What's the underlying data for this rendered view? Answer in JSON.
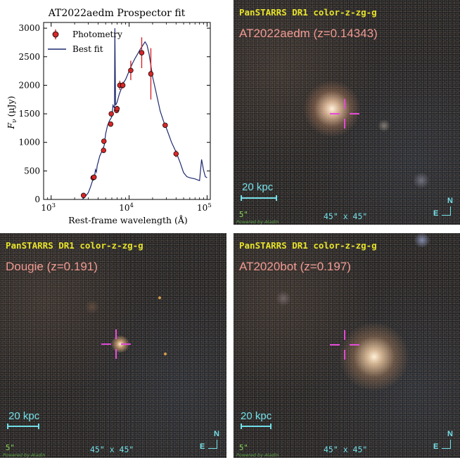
{
  "sed_panel": {
    "title": "AT2022aedm Prospector fit",
    "ylabel_main": "F",
    "ylabel_sub": "ν",
    "ylabel_unit": "(μJy)",
    "xlabel": "Rest-frame wavelength (Å)",
    "legend": {
      "photometry": "Photometry",
      "best_fit": "Best fit"
    },
    "colors": {
      "photometry_marker": "#d62728",
      "best_fit_line": "#1f2a6e"
    }
  },
  "chart_data": {
    "type": "scatter",
    "title": "AT2022aedm Prospector fit",
    "xlabel": "Rest-frame wavelength (Å)",
    "ylabel": "Fν (μJy)",
    "xscale": "log",
    "xlim": [
      800,
      110000
    ],
    "ylim": [
      0,
      3100
    ],
    "x_ticks": [
      "10^3",
      "10^4",
      "10^5"
    ],
    "y_ticks": [
      0,
      500,
      1000,
      1500,
      2000,
      2500,
      3000
    ],
    "legend_position": "top-left",
    "series": [
      {
        "name": "Photometry",
        "kind": "points_with_errorbars",
        "points": [
          {
            "x": 2600,
            "y": 70,
            "err": 20
          },
          {
            "x": 3450,
            "y": 380,
            "err": 25
          },
          {
            "x": 3550,
            "y": 390,
            "err": 25
          },
          {
            "x": 4700,
            "y": 860,
            "err": 40
          },
          {
            "x": 4750,
            "y": 1020,
            "err": 40
          },
          {
            "x": 5800,
            "y": 1320,
            "err": 40
          },
          {
            "x": 5900,
            "y": 1500,
            "err": 40
          },
          {
            "x": 6900,
            "y": 1560,
            "err": 50
          },
          {
            "x": 7000,
            "y": 1590,
            "err": 50
          },
          {
            "x": 7600,
            "y": 2000,
            "err": 80
          },
          {
            "x": 8300,
            "y": 2000,
            "err": 60
          },
          {
            "x": 10500,
            "y": 2260,
            "err": 170
          },
          {
            "x": 14500,
            "y": 2570,
            "err": 270
          },
          {
            "x": 19000,
            "y": 2200,
            "err": 450
          },
          {
            "x": 29000,
            "y": 1300,
            "err": 40
          },
          {
            "x": 40000,
            "y": 800,
            "err": 60
          }
        ]
      },
      {
        "name": "Best fit",
        "kind": "line",
        "x": [
          2500,
          2700,
          3000,
          3200,
          3400,
          3600,
          3700,
          3800,
          3900,
          4000,
          4200,
          4500,
          4800,
          5000,
          5300,
          5600,
          6000,
          6200,
          6500,
          6563,
          6700,
          7000,
          7500,
          8000,
          8500,
          9000,
          10000,
          11000,
          12000,
          13000,
          14000,
          15000,
          16000,
          17000,
          18000,
          19000,
          20000,
          22000,
          25000,
          28000,
          30000,
          35000,
          40000,
          45000,
          50000,
          55000,
          60000,
          70000,
          80000,
          85000,
          90000,
          95000,
          100000
        ],
        "y": [
          0,
          40,
          120,
          220,
          330,
          400,
          520,
          480,
          600,
          650,
          760,
          850,
          950,
          1150,
          1300,
          1380,
          1450,
          1650,
          1600,
          3000,
          1650,
          1700,
          1850,
          1950,
          2050,
          2100,
          2250,
          2380,
          2480,
          2560,
          2640,
          2700,
          2760,
          2700,
          2550,
          2350,
          2150,
          1900,
          1550,
          1350,
          1250,
          1000,
          830,
          650,
          470,
          400,
          380,
          360,
          330,
          700,
          520,
          400,
          380
        ]
      }
    ]
  },
  "sky_panels": [
    {
      "survey_title": "PanSTARRS DR1 color-z-zg-g",
      "object_label": "AT2022aedm  (z=0.14343)",
      "scale_label": "20 kpc",
      "pixel_scale": "5\"",
      "fov": "45\" x 45\"",
      "powered_by": "Powered by Aladin",
      "compass_n": "N",
      "compass_e": "E"
    },
    {
      "survey_title": "PanSTARRS DR1 color-z-zg-g",
      "object_label": "Dougie  (z=0.191)",
      "scale_label": "20 kpc",
      "pixel_scale": "5\"",
      "fov": "45\" x 45\"",
      "powered_by": "Powered by Aladin",
      "compass_n": "N",
      "compass_e": "E"
    },
    {
      "survey_title": "PanSTARRS DR1 color-z-zg-g",
      "object_label": "AT2020bot  (z=0.197)",
      "scale_label": "20 kpc",
      "pixel_scale": "5\"",
      "fov": "45\" x 45\"",
      "powered_by": "Powered by Aladin",
      "compass_n": "N",
      "compass_e": "E"
    }
  ],
  "colors": {
    "survey_title": "#e6e22a",
    "object_label": "#f29a92",
    "crosshair": "#e34ad8",
    "scale": "#73e0e8"
  }
}
